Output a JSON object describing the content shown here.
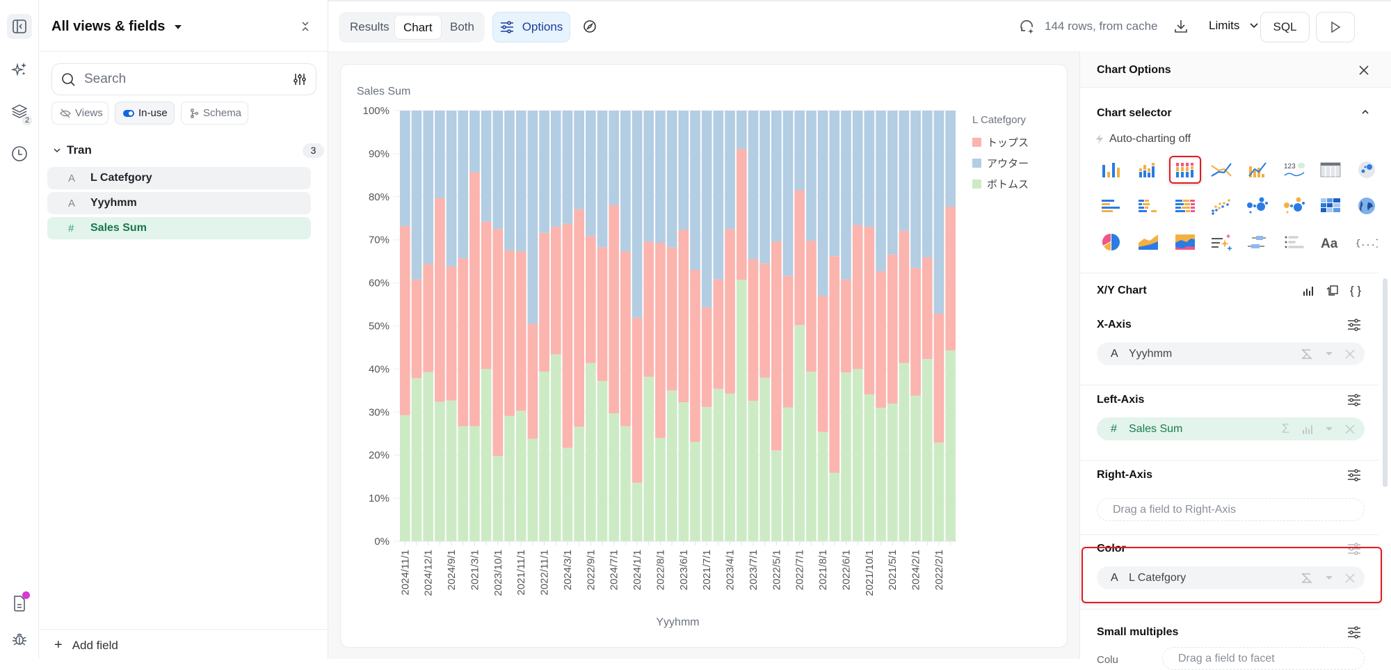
{
  "rail": {
    "items": [
      {
        "icon": "sidebar-toggle-icon"
      },
      {
        "icon": "sparkles-icon"
      },
      {
        "icon": "layers-icon",
        "badge": "2"
      },
      {
        "icon": "history-icon"
      },
      {
        "icon": "document-icon"
      },
      {
        "icon": "bug-icon"
      }
    ]
  },
  "left_panel": {
    "title": "All views & fields",
    "search_placeholder": "Search",
    "filters": [
      {
        "label": "Views",
        "icon": "eye-off-icon"
      },
      {
        "label": "In-use",
        "icon": "toggle-icon",
        "active": true
      },
      {
        "label": "Schema",
        "icon": "schema-icon"
      }
    ],
    "group": {
      "name": "Tran",
      "count": "3"
    },
    "fields": [
      {
        "type_glyph": "A",
        "label": "L Catefgory",
        "kind": "dimension"
      },
      {
        "type_glyph": "A",
        "label": "Yyyhmm",
        "kind": "dimension"
      },
      {
        "type_glyph": "#",
        "label": "Sales Sum",
        "kind": "measure"
      }
    ],
    "add_field": "Add field"
  },
  "toolbar": {
    "tabs": [
      "Results",
      "Chart",
      "Both"
    ],
    "active_tab": "Chart",
    "options_label": "Options",
    "status": "144 rows, from cache",
    "limits_label": "Limits",
    "sql_label": "SQL"
  },
  "chart_data": {
    "type": "bar",
    "stacked": "percent",
    "title": "Sales Sum",
    "xlabel": "Yyyhmm",
    "ylabel": "",
    "ylim": [
      0,
      100
    ],
    "yticks": [
      "0%",
      "10%",
      "20%",
      "30%",
      "40%",
      "50%",
      "60%",
      "70%",
      "80%",
      "90%",
      "100%"
    ],
    "grid": true,
    "legend": {
      "title": "L Catefgory",
      "position": "right"
    },
    "categories": [
      "2024/11/1",
      "",
      "2024/12/1",
      "",
      "2024/9/1",
      "",
      "2021/3/1",
      "",
      "2023/10/1",
      "",
      "2021/11/1",
      "",
      "2022/11/1",
      "",
      "2024/3/1",
      "",
      "2022/9/1",
      "",
      "2024/7/1",
      "",
      "2024/1/1",
      "",
      "2022/8/1",
      "",
      "2023/6/1",
      "",
      "2021/7/1",
      "",
      "2023/4/1",
      "",
      "2023/7/1",
      "",
      "2022/5/1",
      "",
      "2022/7/1",
      "",
      "2021/8/1",
      "",
      "2022/6/1",
      "",
      "2021/10/1",
      "",
      "2021/5/1",
      "",
      "2024/2/1",
      "",
      "2022/2/1",
      ""
    ],
    "series": [
      {
        "name": "ボトムス",
        "color": "#ccebc5",
        "values": [
          29.3,
          37.9,
          39.3,
          32.4,
          32.7,
          26.7,
          26.7,
          40.0,
          19.8,
          29.1,
          30.3,
          23.8,
          39.4,
          43.4,
          21.7,
          26.6,
          41.4,
          37.2,
          29.7,
          26.7,
          13.6,
          38.2,
          24.0,
          35.0,
          32.3,
          23.1,
          31.2,
          35.4,
          34.3,
          60.7,
          32.6,
          38.0,
          21.1,
          31.1,
          50.2,
          39.4,
          25.4,
          15.9,
          39.2,
          40.0,
          34.1,
          31.0,
          32.0,
          41.4,
          33.8,
          42.3,
          22.9,
          44.3
        ]
      },
      {
        "name": "トップス",
        "color": "#fbb4ae",
        "values": [
          43.9,
          22.9,
          25.1,
          47.3,
          31.1,
          39.0,
          59.0,
          34.2,
          52.7,
          38.5,
          37.0,
          26.7,
          32.2,
          29.6,
          52.0,
          50.5,
          29.5,
          31.1,
          48.4,
          40.6,
          38.3,
          31.4,
          45.3,
          33.2,
          40.0,
          39.9,
          23.1,
          25.4,
          38.2,
          30.4,
          32.9,
          26.5,
          48.5,
          30.5,
          31.3,
          30.4,
          31.6,
          50.3,
          21.6,
          33.4,
          38.9,
          31.7,
          34.6,
          30.7,
          29.7,
          23.6,
          30.0,
          33.4
        ]
      },
      {
        "name": "アウター",
        "color": "#b3cde3",
        "values": [
          26.8,
          39.2,
          35.6,
          20.3,
          36.2,
          34.3,
          14.3,
          25.8,
          27.5,
          32.4,
          32.7,
          49.5,
          28.4,
          27.0,
          26.3,
          22.9,
          29.1,
          31.7,
          21.9,
          32.7,
          48.1,
          30.4,
          30.7,
          31.8,
          27.7,
          37.0,
          45.7,
          39.2,
          27.5,
          8.9,
          34.5,
          35.5,
          30.4,
          38.4,
          18.5,
          30.2,
          43.0,
          33.8,
          39.2,
          26.6,
          27.0,
          37.3,
          33.4,
          27.9,
          36.5,
          34.1,
          47.1,
          22.3
        ]
      }
    ],
    "legend_order": [
      "トップス",
      "アウター",
      "ボトムス"
    ]
  },
  "options_panel": {
    "title": "Chart Options",
    "chart_selector_title": "Chart selector",
    "auto_charting": "Auto-charting off",
    "chart_types": [
      "bar",
      "grouped-bar",
      "stacked-bar",
      "line",
      "bar-line",
      "number-trend",
      "table",
      "bubble-map",
      "horizontal-bar",
      "horizontal-grouped-bar",
      "horizontal-stacked-bar",
      "scatter",
      "bubble",
      "bubble-color",
      "heatmap",
      "globe",
      "pie",
      "area",
      "stacked-area",
      "ai-text",
      "boxplot",
      "list",
      "text",
      "json"
    ],
    "selected_chart_type": "stacked-bar",
    "xy_title": "X/Y Chart",
    "sections": {
      "x_axis": {
        "title": "X-Axis",
        "field": "Yyyhmm",
        "glyph": "A"
      },
      "left_axis": {
        "title": "Left-Axis",
        "field": "Sales Sum",
        "glyph": "#"
      },
      "right_axis": {
        "title": "Right-Axis",
        "placeholder": "Drag a field to Right-Axis"
      },
      "color": {
        "title": "Color",
        "field": "L Catefgory",
        "glyph": "A"
      },
      "small_multiples": {
        "title": "Small multiples",
        "row_label": "Colu",
        "placeholder": "Drag a field to facet"
      }
    },
    "highlight_color": "#e5191f"
  }
}
